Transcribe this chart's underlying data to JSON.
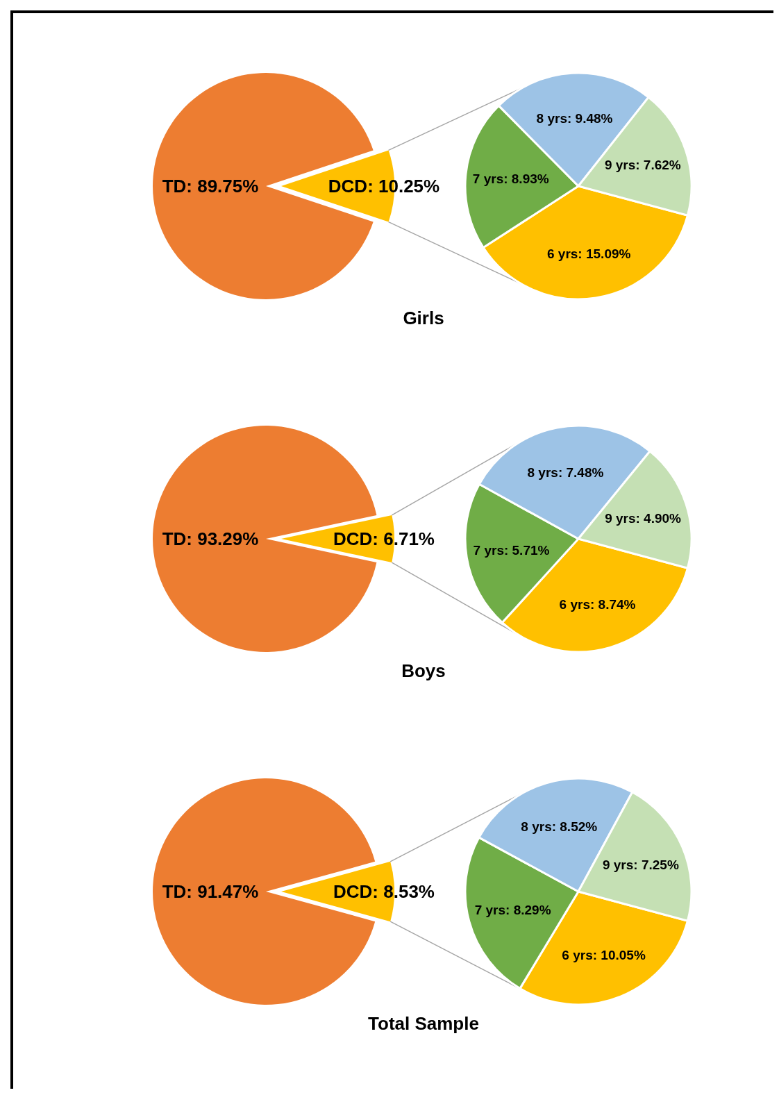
{
  "chart_data": [
    {
      "type": "pie",
      "title": "Girls",
      "categories": [
        "TD",
        "DCD"
      ],
      "values": [
        89.75,
        10.25
      ],
      "value_labels": [
        "89.75%",
        "10.25%"
      ],
      "colors": [
        "#ed7d31",
        "#ffc000"
      ]
    },
    {
      "type": "pie",
      "categories": [
        "6 yrs",
        "7 yrs",
        "8 yrs",
        "9 yrs"
      ],
      "values": [
        15.09,
        8.93,
        9.48,
        7.62
      ],
      "value_labels": [
        "15.09%",
        "8.93%",
        "9.48%",
        "7.62%"
      ],
      "colors": [
        "#ffc000",
        "#70ad47",
        "#9dc3e6",
        "#c5e0b4"
      ]
    },
    {
      "type": "pie",
      "title": "Boys",
      "categories": [
        "TD",
        "DCD"
      ],
      "values": [
        93.29,
        6.71
      ],
      "value_labels": [
        "93.29%",
        "6.71%"
      ],
      "colors": [
        "#ed7d31",
        "#ffc000"
      ]
    },
    {
      "type": "pie",
      "categories": [
        "6 yrs",
        "7 yrs",
        "8 yrs",
        "9 yrs"
      ],
      "values": [
        8.74,
        5.71,
        7.48,
        4.9
      ],
      "value_labels": [
        "8.74%",
        "5.71%",
        "7.48%",
        "4.90%"
      ],
      "colors": [
        "#ffc000",
        "#70ad47",
        "#9dc3e6",
        "#c5e0b4"
      ]
    },
    {
      "type": "pie",
      "title": "Total Sample",
      "categories": [
        "TD",
        "DCD"
      ],
      "values": [
        91.47,
        8.53
      ],
      "value_labels": [
        "91.47%",
        "8.53%"
      ],
      "colors": [
        "#ed7d31",
        "#ffc000"
      ]
    },
    {
      "type": "pie",
      "categories": [
        "6 yrs",
        "7 yrs",
        "8 yrs",
        "9 yrs"
      ],
      "values": [
        10.05,
        8.29,
        8.52,
        7.25
      ],
      "value_labels": [
        "10.05%",
        "8.29%",
        "8.52%",
        "7.25%"
      ],
      "colors": [
        "#ffc000",
        "#70ad47",
        "#9dc3e6",
        "#c5e0b4"
      ]
    }
  ]
}
